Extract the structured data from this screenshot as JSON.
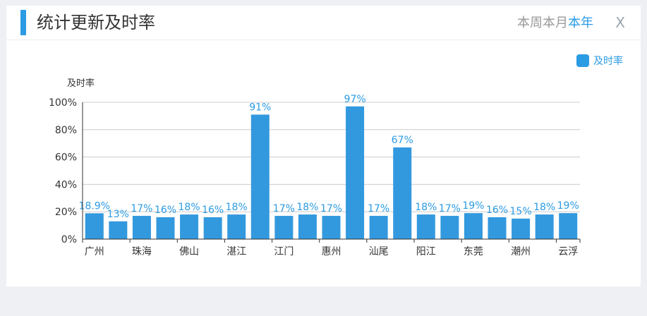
{
  "header": {
    "title": "统计更新及时率",
    "tabs": [
      {
        "label": "本周",
        "active": false
      },
      {
        "label": "本月",
        "active": false
      },
      {
        "label": "本年",
        "active": true
      }
    ],
    "close_label": "X"
  },
  "colors": {
    "accent": "#2b9be4",
    "bar": "#3399de"
  },
  "chart_data": {
    "type": "bar",
    "ylabel": "及时率",
    "xlabel": "",
    "ylim": [
      0,
      100
    ],
    "yticks": [
      "0%",
      "20%",
      "40%",
      "60%",
      "80%",
      "100%"
    ],
    "grid": true,
    "legend_position": "top-right",
    "series": [
      {
        "name": "及时率",
        "values": [
          18.9,
          13,
          17,
          16,
          18,
          16,
          18,
          91,
          17,
          18,
          17,
          97,
          17,
          67,
          18,
          17,
          19,
          16,
          15,
          18,
          19
        ],
        "labels": [
          "18.9%",
          "13%",
          "17%",
          "16%",
          "18%",
          "16%",
          "18%",
          "91%",
          "17%",
          "18%",
          "17%",
          "97%",
          "17%",
          "67%",
          "18%",
          "17%",
          "19%",
          "16%",
          "15%",
          "18%",
          "19%"
        ]
      }
    ],
    "tick_labels": [
      {
        "index": 0,
        "label": "广州"
      },
      {
        "index": 2,
        "label": "珠海"
      },
      {
        "index": 4,
        "label": "佛山"
      },
      {
        "index": 6,
        "label": "湛江"
      },
      {
        "index": 8,
        "label": "江门"
      },
      {
        "index": 10,
        "label": "惠州"
      },
      {
        "index": 12,
        "label": "汕尾"
      },
      {
        "index": 14,
        "label": "阳江"
      },
      {
        "index": 16,
        "label": "东莞"
      },
      {
        "index": 18,
        "label": "潮州"
      },
      {
        "index": 20,
        "label": "云浮"
      }
    ]
  }
}
